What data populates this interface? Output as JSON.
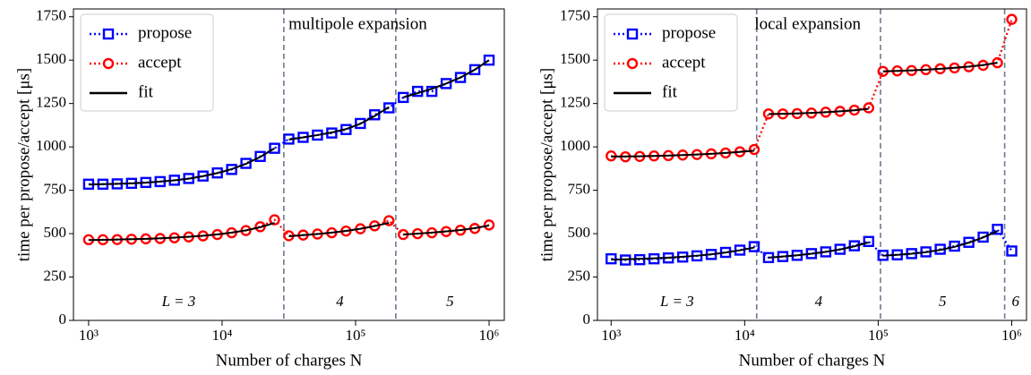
{
  "chart_data": [
    {
      "type": "line",
      "annotation": "multipole expansion",
      "xlabel": "Number of charges N",
      "ylabel": "time per propose/accept [μs]",
      "xscale": "log",
      "xlim": [
        770,
        1300000
      ],
      "ylim": [
        0,
        1795
      ],
      "xticks": [
        {
          "value": 1000,
          "label": "10³"
        },
        {
          "value": 10000,
          "label": "10⁴"
        },
        {
          "value": 100000,
          "label": "10⁵"
        },
        {
          "value": 1000000,
          "label": "10⁶"
        }
      ],
      "yticks": [
        0,
        250,
        500,
        750,
        1000,
        1250,
        1500,
        1750
      ],
      "legend": "upper left",
      "fit_name": "fit",
      "fit_color": "#000000",
      "breaks": [
        29000,
        200000
      ],
      "segment_labels": [
        "L = 3",
        "4",
        "5"
      ],
      "x": [
        1000,
        1280,
        1638,
        2096,
        2683,
        3434,
        4394,
        5623,
        7197,
        9211,
        11788,
        15085,
        19307,
        24709,
        31623,
        40470,
        51795,
        66289,
        84834,
        108573,
        138950,
        177828,
        227585,
        291264,
        372759,
        477058,
        610540,
        781371,
        1000000
      ],
      "series": [
        {
          "name": "propose",
          "color": "#0000ff",
          "marker": "square",
          "values": [
            785,
            785,
            787,
            790,
            795,
            800,
            808,
            818,
            832,
            850,
            870,
            905,
            945,
            992,
            1045,
            1055,
            1068,
            1080,
            1100,
            1135,
            1185,
            1225,
            1285,
            1320,
            1320,
            1365,
            1400,
            1445,
            1500
          ],
          "fit": [
            783,
            785,
            787,
            790,
            794,
            800,
            807,
            817,
            831,
            849,
            872,
            902,
            942,
            992,
            1042,
            1055,
            1068,
            1083,
            1103,
            1133,
            1178,
            1230,
            1285,
            1310,
            1335,
            1365,
            1400,
            1445,
            1500
          ]
        },
        {
          "name": "accept",
          "color": "#ff0000",
          "marker": "circle",
          "values": [
            465,
            465,
            466,
            468,
            470,
            472,
            476,
            481,
            487,
            495,
            505,
            518,
            540,
            580,
            488,
            492,
            498,
            505,
            515,
            528,
            545,
            575,
            495,
            500,
            505,
            512,
            520,
            530,
            550
          ],
          "fit": [
            463,
            464,
            466,
            468,
            470,
            473,
            477,
            482,
            488,
            496,
            506,
            519,
            537,
            562,
            485,
            491,
            498,
            506,
            516,
            528,
            544,
            562,
            495,
            500,
            506,
            513,
            521,
            532,
            547
          ]
        }
      ]
    },
    {
      "type": "line",
      "annotation": "local expansion",
      "xlabel": "Number of charges N",
      "ylabel": "time per propose/accept [μs]",
      "xscale": "log",
      "xlim": [
        790,
        1290000
      ],
      "ylim": [
        0,
        1795
      ],
      "xticks": [
        {
          "value": 1000,
          "label": "10³"
        },
        {
          "value": 10000,
          "label": "10⁴"
        },
        {
          "value": 100000,
          "label": "10⁵"
        },
        {
          "value": 1000000,
          "label": "10⁶"
        }
      ],
      "yticks": [
        0,
        250,
        500,
        750,
        1000,
        1250,
        1500,
        1750
      ],
      "legend": "upper left",
      "fit_name": "fit",
      "fit_color": "#000000",
      "breaks": [
        12300,
        104000,
        885000
      ],
      "segment_labels": [
        "L = 3",
        "4",
        "5",
        "6"
      ],
      "x": [
        1000,
        1280,
        1638,
        2096,
        2683,
        3434,
        4394,
        5623,
        7197,
        9211,
        11788,
        15085,
        19307,
        24709,
        31623,
        40470,
        51795,
        66289,
        84834,
        108573,
        138950,
        177828,
        227585,
        291264,
        372759,
        477058,
        610540,
        781371,
        1000000
      ],
      "series": [
        {
          "name": "propose",
          "color": "#0000ff",
          "marker": "square",
          "values": [
            355,
            348,
            350,
            355,
            360,
            365,
            372,
            380,
            392,
            405,
            425,
            362,
            368,
            375,
            385,
            395,
            410,
            430,
            455,
            375,
            378,
            385,
            395,
            410,
            428,
            450,
            480,
            525,
            400
          ],
          "fit": [
            350,
            352,
            355,
            358,
            362,
            367,
            373,
            381,
            391,
            404,
            420,
            362,
            368,
            375,
            384,
            395,
            409,
            427,
            450,
            373,
            378,
            384,
            393,
            406,
            424,
            448,
            478,
            515,
            null
          ]
        },
        {
          "name": "accept",
          "color": "#ff0000",
          "marker": "circle",
          "values": [
            948,
            943,
            945,
            948,
            950,
            953,
            956,
            960,
            965,
            972,
            985,
            1190,
            1190,
            1192,
            1195,
            1200,
            1205,
            1212,
            1225,
            1435,
            1438,
            1440,
            1445,
            1450,
            1455,
            1462,
            1470,
            1485,
            1735
          ],
          "fit": [
            944,
            945,
            946,
            948,
            950,
            953,
            956,
            960,
            965,
            971,
            978,
            1189,
            1191,
            1193,
            1196,
            1200,
            1205,
            1211,
            1220,
            1435,
            1438,
            1441,
            1445,
            1450,
            1456,
            1463,
            1472,
            1485,
            null
          ]
        }
      ]
    }
  ]
}
